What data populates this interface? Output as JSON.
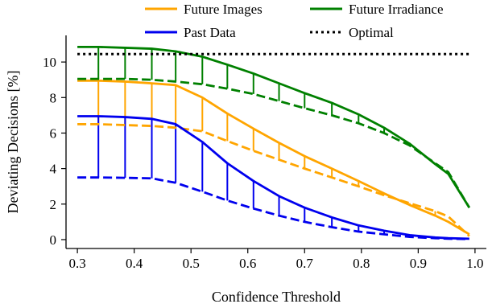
{
  "chart_data": {
    "type": "line",
    "xlabel": "Confidence Threshold",
    "ylabel": "Deviating Decisions [%]",
    "xlim": [
      0.28,
      1.02
    ],
    "ylim": [
      -0.5,
      11.5
    ],
    "xticks": [
      0.3,
      0.4,
      0.5,
      0.6,
      0.7,
      0.8,
      0.9,
      1.0
    ],
    "xtick_labels": [
      "0.3",
      "0.4",
      "0.5",
      "0.6",
      "0.7",
      "0.8",
      "0.9",
      "1.0"
    ],
    "yticks": [
      0,
      2,
      4,
      6,
      8,
      10
    ],
    "ytick_labels": [
      "0",
      "2",
      "4",
      "6",
      "8",
      "10"
    ],
    "grid": false,
    "legend_placement": "top, above plot",
    "x": [
      0.3,
      0.337,
      0.384,
      0.431,
      0.473,
      0.52,
      0.564,
      0.61,
      0.655,
      0.7,
      0.748,
      0.795,
      0.84,
      0.885,
      0.93,
      0.953,
      0.99
    ],
    "series": [
      {
        "name": "Future Images",
        "color": "#ffa500",
        "style": "solid",
        "values": [
          8.95,
          8.95,
          8.9,
          8.8,
          8.7,
          8.0,
          7.1,
          6.25,
          5.45,
          4.7,
          4.0,
          3.3,
          2.6,
          1.95,
          1.35,
          1.0,
          0.3
        ]
      },
      {
        "name": "Future Images (dashed)",
        "color": "#ffa500",
        "style": "dashed",
        "values": [
          6.5,
          6.5,
          6.45,
          6.4,
          6.3,
          6.1,
          5.55,
          5.0,
          4.5,
          4.0,
          3.5,
          3.0,
          2.5,
          2.05,
          1.6,
          1.3,
          0.2
        ]
      },
      {
        "name": "Past Data",
        "color": "#0000ee",
        "style": "solid",
        "values": [
          6.95,
          6.95,
          6.9,
          6.8,
          6.5,
          5.5,
          4.3,
          3.3,
          2.45,
          1.8,
          1.25,
          0.8,
          0.5,
          0.25,
          0.12,
          0.08,
          0.05
        ]
      },
      {
        "name": "Past Data (dashed)",
        "color": "#0000ee",
        "style": "dashed",
        "values": [
          3.5,
          3.5,
          3.48,
          3.45,
          3.2,
          2.7,
          2.2,
          1.75,
          1.35,
          1.0,
          0.7,
          0.45,
          0.3,
          0.15,
          0.08,
          0.05,
          0.03
        ]
      },
      {
        "name": "Future Irradiance",
        "color": "#008000",
        "style": "solid",
        "values": [
          10.85,
          10.85,
          10.8,
          10.75,
          10.6,
          10.3,
          9.85,
          9.35,
          8.8,
          8.25,
          7.7,
          7.05,
          6.3,
          5.4,
          4.25,
          3.7,
          1.8
        ]
      },
      {
        "name": "Future Irradiance (dashed)",
        "color": "#008000",
        "style": "dashed",
        "values": [
          9.05,
          9.05,
          9.05,
          9.0,
          8.9,
          8.75,
          8.5,
          8.2,
          7.8,
          7.4,
          7.0,
          6.55,
          6.0,
          5.3,
          4.3,
          3.8,
          1.8
        ]
      },
      {
        "name": "Optimal",
        "color": "#000000",
        "style": "dotted",
        "values": [
          10.45,
          10.45,
          10.45,
          10.45,
          10.45,
          10.45,
          10.45,
          10.45,
          10.45,
          10.45,
          10.45,
          10.45,
          10.45,
          10.45,
          10.45,
          10.45,
          10.45
        ]
      }
    ],
    "legend": [
      {
        "label": "Future Images",
        "color": "#ffa500",
        "style": "solid"
      },
      {
        "label": "Future Irradiance",
        "color": "#008000",
        "style": "solid"
      },
      {
        "label": "Past Data",
        "color": "#0000ee",
        "style": "solid"
      },
      {
        "label": "Optimal",
        "color": "#000000",
        "style": "dotted"
      }
    ],
    "connectors": [
      {
        "solid": "Future Images",
        "dashed": "Future Images (dashed)"
      },
      {
        "solid": "Past Data",
        "dashed": "Past Data (dashed)"
      },
      {
        "solid": "Future Irradiance",
        "dashed": "Future Irradiance (dashed)"
      }
    ]
  }
}
